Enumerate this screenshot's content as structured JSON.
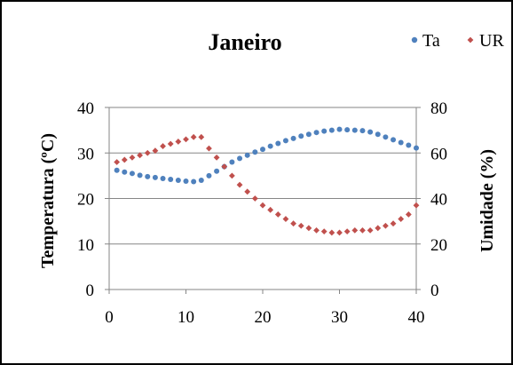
{
  "chart_data": {
    "type": "scatter",
    "title": "Janeiro",
    "xlabel": "",
    "ylabel": "Temperatura (ºC)",
    "y2label": "Umidade (%)",
    "xlim": [
      0,
      40
    ],
    "ylim": [
      0,
      40
    ],
    "y2lim": [
      0,
      80
    ],
    "xticks": [
      "0",
      "10",
      "20",
      "30",
      "40"
    ],
    "yticks": [
      "0",
      "10",
      "20",
      "30",
      "40"
    ],
    "y2ticks": [
      "0",
      "20",
      "40",
      "60",
      "80"
    ],
    "grid": true,
    "legend_position": "top-right",
    "series": [
      {
        "name": "Ta",
        "axis": "left",
        "color": "#4f81bd",
        "marker": "circle",
        "x": [
          1,
          2,
          3,
          4,
          5,
          6,
          7,
          8,
          9,
          10,
          11,
          12,
          13,
          14,
          15,
          16,
          17,
          18,
          19,
          20,
          21,
          22,
          23,
          24,
          25,
          26,
          27,
          28,
          29,
          30,
          31,
          32,
          33,
          34,
          35,
          36,
          37,
          38,
          39,
          40
        ],
        "y": [
          26.2,
          25.8,
          25.5,
          25.1,
          24.8,
          24.6,
          24.4,
          24.2,
          24.0,
          23.8,
          23.7,
          24.0,
          25.0,
          26.0,
          27.0,
          28.0,
          28.8,
          29.5,
          30.2,
          30.8,
          31.5,
          32.1,
          32.7,
          33.2,
          33.7,
          34.1,
          34.5,
          34.8,
          35.0,
          35.2,
          35.1,
          35.0,
          34.9,
          34.6,
          34.1,
          33.5,
          32.9,
          32.3,
          31.7,
          31.1
        ]
      },
      {
        "name": "UR",
        "axis": "right",
        "color": "#c0504d",
        "marker": "diamond",
        "x": [
          1,
          2,
          3,
          4,
          5,
          6,
          7,
          8,
          9,
          10,
          11,
          12,
          13,
          14,
          15,
          16,
          17,
          18,
          19,
          20,
          21,
          22,
          23,
          24,
          25,
          26,
          27,
          28,
          29,
          30,
          31,
          32,
          33,
          34,
          35,
          36,
          37,
          38,
          39,
          40
        ],
        "y": [
          56,
          57,
          58,
          59,
          60,
          61,
          63,
          64,
          65,
          66,
          67,
          67,
          62,
          58,
          54,
          50,
          46,
          43,
          40,
          37,
          35,
          33,
          31,
          29,
          28,
          27,
          26,
          25.5,
          25,
          25,
          25.5,
          26,
          26,
          26,
          27,
          28,
          29,
          31,
          33,
          37
        ]
      }
    ]
  }
}
